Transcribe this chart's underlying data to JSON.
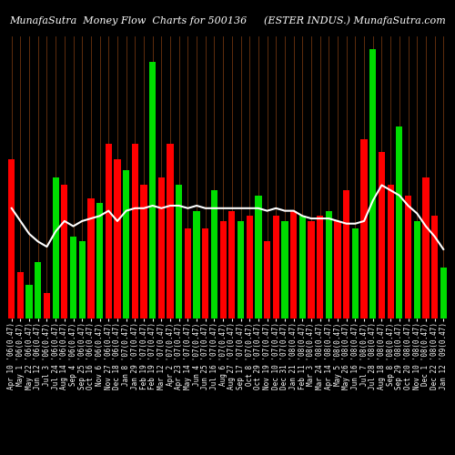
{
  "title_left": "MunafaSutra  Money Flow  Charts for 500136",
  "title_right": "(ESTER INDUS.) MunafaSutra.com",
  "background_color": "#000000",
  "bar_colors": [
    "red",
    "red",
    "green",
    "green",
    "red",
    "green",
    "red",
    "green",
    "green",
    "red",
    "green",
    "red",
    "red",
    "green",
    "red",
    "red",
    "green",
    "red",
    "red",
    "green",
    "red",
    "green",
    "red",
    "green",
    "red",
    "red",
    "green",
    "red",
    "green",
    "red",
    "red",
    "green",
    "red",
    "green",
    "red",
    "red",
    "green",
    "red",
    "red",
    "green",
    "red",
    "green",
    "red",
    "red",
    "green",
    "red",
    "green",
    "red",
    "red",
    "green"
  ],
  "bar_heights": [
    0.62,
    0.18,
    0.13,
    0.22,
    0.1,
    0.55,
    0.52,
    0.32,
    0.3,
    0.47,
    0.45,
    0.68,
    0.62,
    0.58,
    0.68,
    0.52,
    1.0,
    0.55,
    0.68,
    0.52,
    0.35,
    0.42,
    0.35,
    0.5,
    0.38,
    0.42,
    0.38,
    0.4,
    0.48,
    0.3,
    0.4,
    0.38,
    0.42,
    0.4,
    0.38,
    0.4,
    0.42,
    0.38,
    0.5,
    0.35,
    0.7,
    1.05,
    0.65,
    0.52,
    0.75,
    0.48,
    0.38,
    0.55,
    0.4,
    0.2
  ],
  "line_values": [
    0.43,
    0.38,
    0.33,
    0.3,
    0.28,
    0.34,
    0.38,
    0.36,
    0.38,
    0.39,
    0.4,
    0.42,
    0.38,
    0.42,
    0.43,
    0.43,
    0.44,
    0.43,
    0.44,
    0.44,
    0.43,
    0.44,
    0.43,
    0.43,
    0.43,
    0.43,
    0.43,
    0.43,
    0.43,
    0.42,
    0.43,
    0.42,
    0.42,
    0.4,
    0.39,
    0.39,
    0.39,
    0.38,
    0.37,
    0.37,
    0.38,
    0.46,
    0.52,
    0.5,
    0.48,
    0.44,
    0.41,
    0.36,
    0.32,
    0.27
  ],
  "xlabels": [
    "Apr 10 '06(0.47)",
    "May 1 '06(0.47)",
    "May 22 '06(0.47)",
    "Jun 12 '06(0.47)",
    "Jul 3 '06(0.47)",
    "Jul 24 '06(0.47)",
    "Aug 14 '06(0.47)",
    "Sep 4 '06(0.47)",
    "Sep 25 '06(0.47)",
    "Oct 16 '06(0.47)",
    "Nov 6 '06(0.47)",
    "Nov 27 '06(0.47)",
    "Dec 18 '06(0.47)",
    "Jan 8 '07(0.47)",
    "Jan 29 '07(0.47)",
    "Feb 19 '07(0.47)",
    "Feb 19 '07(0.47)",
    "Mar 12 '07(0.47)",
    "Apr 2 '07(0.47)",
    "Apr 23 '07(0.47)",
    "May 14 '07(0.47)",
    "Jun 4 '07(0.47)",
    "Jun 25 '07(0.47)",
    "Jul 16 '07(0.47)",
    "Aug 6 '07(0.47)",
    "Aug 27 '07(0.47)",
    "Sep 17 '07(0.47)",
    "Oct 8 '07(0.47)",
    "Oct 29 '07(0.47)",
    "Nov 19 '07(0.47)",
    "Dec 10 '07(0.47)",
    "Dec 31 '07(0.47)",
    "Jan 21 '08(0.47)",
    "Feb 11 '08(0.47)",
    "Mar 3 '08(0.47)",
    "Mar 24 '08(0.47)",
    "Apr 14 '08(0.47)",
    "May 5 '08(0.47)",
    "May 26 '08(0.47)",
    "Jun 16 '08(0.47)",
    "Jul 7 '08(0.47)",
    "Jul 28 '08(0.47)",
    "Aug 18 '08(0.47)",
    "Sep 8 '08(0.47)",
    "Sep 29 '08(0.47)",
    "Oct 20 '08(0.47)",
    "Nov 10 '08(0.47)",
    "Dec 1 '08(0.47)",
    "Dec 22 '08(0.47)",
    "Jan 12 '09(0.47)"
  ],
  "line_color": "#ffffff",
  "grid_color": "#7B3A10",
  "ylim": [
    0,
    1.1
  ],
  "tick_color": "#ffffff",
  "tick_fontsize": 5.5,
  "title_fontsize": 8
}
